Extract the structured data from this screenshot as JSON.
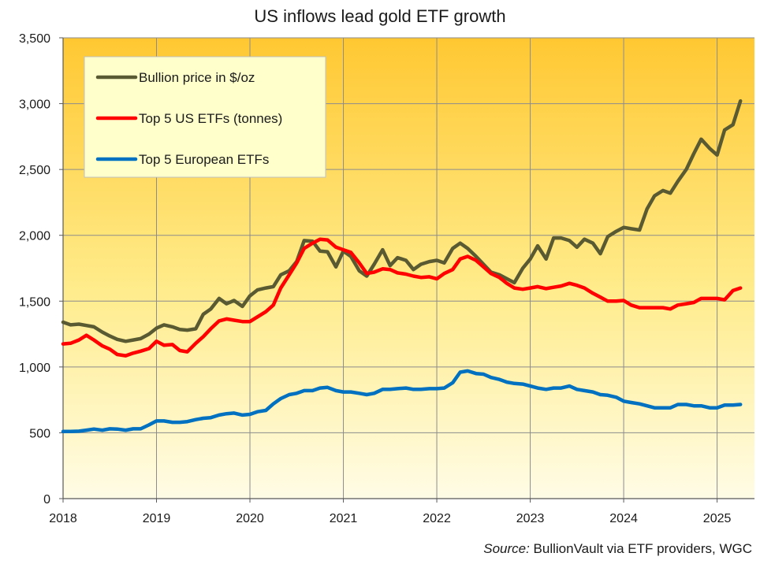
{
  "chart_data": {
    "type": "line",
    "title": "US inflows lead gold ETF growth",
    "source_label": "Source:",
    "source_text": " BullionVault via ETF providers,  WGC",
    "ylim": [
      0,
      3500
    ],
    "y_ticks": [
      "0",
      "500",
      "1,000",
      "1,500",
      "2,000",
      "2,500",
      "3,000",
      "3,500"
    ],
    "x_range": [
      2018,
      2025.4
    ],
    "x_ticks": [
      "2018",
      "2019",
      "2020",
      "2021",
      "2022",
      "2023",
      "2024",
      "2025"
    ],
    "grid": true,
    "legend_position": "top-left",
    "series": [
      {
        "name": "Bullion price in $/oz",
        "color": "#5a5a32",
        "points": [
          [
            2018.0,
            1340
          ],
          [
            2018.08,
            1320
          ],
          [
            2018.17,
            1325
          ],
          [
            2018.25,
            1315
          ],
          [
            2018.33,
            1305
          ],
          [
            2018.42,
            1265
          ],
          [
            2018.5,
            1235
          ],
          [
            2018.58,
            1210
          ],
          [
            2018.67,
            1195
          ],
          [
            2018.75,
            1205
          ],
          [
            2018.83,
            1215
          ],
          [
            2018.92,
            1250
          ],
          [
            2019.0,
            1295
          ],
          [
            2019.08,
            1320
          ],
          [
            2019.17,
            1305
          ],
          [
            2019.25,
            1285
          ],
          [
            2019.33,
            1280
          ],
          [
            2019.42,
            1290
          ],
          [
            2019.5,
            1400
          ],
          [
            2019.58,
            1440
          ],
          [
            2019.67,
            1520
          ],
          [
            2019.75,
            1480
          ],
          [
            2019.83,
            1505
          ],
          [
            2019.92,
            1460
          ],
          [
            2020.0,
            1540
          ],
          [
            2020.08,
            1585
          ],
          [
            2020.17,
            1600
          ],
          [
            2020.25,
            1610
          ],
          [
            2020.33,
            1700
          ],
          [
            2020.42,
            1730
          ],
          [
            2020.5,
            1800
          ],
          [
            2020.58,
            1960
          ],
          [
            2020.67,
            1955
          ],
          [
            2020.75,
            1880
          ],
          [
            2020.83,
            1875
          ],
          [
            2020.92,
            1760
          ],
          [
            2021.0,
            1880
          ],
          [
            2021.08,
            1840
          ],
          [
            2021.17,
            1730
          ],
          [
            2021.25,
            1690
          ],
          [
            2021.33,
            1780
          ],
          [
            2021.42,
            1890
          ],
          [
            2021.5,
            1770
          ],
          [
            2021.58,
            1830
          ],
          [
            2021.67,
            1810
          ],
          [
            2021.75,
            1740
          ],
          [
            2021.83,
            1780
          ],
          [
            2021.92,
            1800
          ],
          [
            2022.0,
            1810
          ],
          [
            2022.08,
            1790
          ],
          [
            2022.17,
            1900
          ],
          [
            2022.25,
            1940
          ],
          [
            2022.33,
            1900
          ],
          [
            2022.42,
            1840
          ],
          [
            2022.5,
            1780
          ],
          [
            2022.58,
            1720
          ],
          [
            2022.67,
            1700
          ],
          [
            2022.75,
            1670
          ],
          [
            2022.83,
            1640
          ],
          [
            2022.92,
            1750
          ],
          [
            2023.0,
            1820
          ],
          [
            2023.08,
            1920
          ],
          [
            2023.17,
            1820
          ],
          [
            2023.25,
            1980
          ],
          [
            2023.33,
            1980
          ],
          [
            2023.42,
            1960
          ],
          [
            2023.5,
            1910
          ],
          [
            2023.58,
            1970
          ],
          [
            2023.67,
            1940
          ],
          [
            2023.75,
            1860
          ],
          [
            2023.83,
            1990
          ],
          [
            2023.92,
            2030
          ],
          [
            2024.0,
            2060
          ],
          [
            2024.08,
            2050
          ],
          [
            2024.17,
            2040
          ],
          [
            2024.25,
            2200
          ],
          [
            2024.33,
            2300
          ],
          [
            2024.42,
            2340
          ],
          [
            2024.5,
            2320
          ],
          [
            2024.58,
            2410
          ],
          [
            2024.67,
            2500
          ],
          [
            2024.75,
            2620
          ],
          [
            2024.83,
            2730
          ],
          [
            2024.92,
            2660
          ],
          [
            2025.0,
            2610
          ],
          [
            2025.08,
            2800
          ],
          [
            2025.17,
            2840
          ],
          [
            2025.25,
            3020
          ]
        ]
      },
      {
        "name": "Top 5 US ETFs (tonnes)",
        "color": "#ff0000",
        "points": [
          [
            2018.0,
            1175
          ],
          [
            2018.08,
            1180
          ],
          [
            2018.17,
            1205
          ],
          [
            2018.25,
            1240
          ],
          [
            2018.33,
            1205
          ],
          [
            2018.42,
            1160
          ],
          [
            2018.5,
            1135
          ],
          [
            2018.58,
            1095
          ],
          [
            2018.67,
            1085
          ],
          [
            2018.75,
            1105
          ],
          [
            2018.83,
            1120
          ],
          [
            2018.92,
            1140
          ],
          [
            2019.0,
            1195
          ],
          [
            2019.08,
            1165
          ],
          [
            2019.17,
            1170
          ],
          [
            2019.25,
            1125
          ],
          [
            2019.33,
            1115
          ],
          [
            2019.42,
            1180
          ],
          [
            2019.5,
            1230
          ],
          [
            2019.58,
            1290
          ],
          [
            2019.67,
            1350
          ],
          [
            2019.75,
            1365
          ],
          [
            2019.83,
            1355
          ],
          [
            2019.92,
            1345
          ],
          [
            2020.0,
            1345
          ],
          [
            2020.08,
            1380
          ],
          [
            2020.17,
            1420
          ],
          [
            2020.25,
            1470
          ],
          [
            2020.33,
            1600
          ],
          [
            2020.42,
            1700
          ],
          [
            2020.5,
            1790
          ],
          [
            2020.58,
            1900
          ],
          [
            2020.67,
            1940
          ],
          [
            2020.75,
            1970
          ],
          [
            2020.83,
            1965
          ],
          [
            2020.92,
            1910
          ],
          [
            2021.0,
            1890
          ],
          [
            2021.08,
            1870
          ],
          [
            2021.17,
            1790
          ],
          [
            2021.25,
            1710
          ],
          [
            2021.33,
            1720
          ],
          [
            2021.42,
            1745
          ],
          [
            2021.5,
            1740
          ],
          [
            2021.58,
            1715
          ],
          [
            2021.67,
            1705
          ],
          [
            2021.75,
            1690
          ],
          [
            2021.83,
            1680
          ],
          [
            2021.92,
            1685
          ],
          [
            2022.0,
            1670
          ],
          [
            2022.08,
            1710
          ],
          [
            2022.17,
            1740
          ],
          [
            2022.25,
            1820
          ],
          [
            2022.33,
            1840
          ],
          [
            2022.42,
            1810
          ],
          [
            2022.5,
            1760
          ],
          [
            2022.58,
            1710
          ],
          [
            2022.67,
            1680
          ],
          [
            2022.75,
            1635
          ],
          [
            2022.83,
            1600
          ],
          [
            2022.92,
            1590
          ],
          [
            2023.0,
            1600
          ],
          [
            2023.08,
            1610
          ],
          [
            2023.17,
            1595
          ],
          [
            2023.25,
            1605
          ],
          [
            2023.33,
            1615
          ],
          [
            2023.42,
            1635
          ],
          [
            2023.5,
            1620
          ],
          [
            2023.58,
            1600
          ],
          [
            2023.67,
            1560
          ],
          [
            2023.75,
            1530
          ],
          [
            2023.83,
            1500
          ],
          [
            2023.92,
            1500
          ],
          [
            2024.0,
            1505
          ],
          [
            2024.08,
            1470
          ],
          [
            2024.17,
            1450
          ],
          [
            2024.25,
            1450
          ],
          [
            2024.33,
            1450
          ],
          [
            2024.42,
            1450
          ],
          [
            2024.5,
            1440
          ],
          [
            2024.58,
            1470
          ],
          [
            2024.67,
            1480
          ],
          [
            2024.75,
            1490
          ],
          [
            2024.83,
            1520
          ],
          [
            2024.92,
            1520
          ],
          [
            2025.0,
            1520
          ],
          [
            2025.08,
            1510
          ],
          [
            2025.17,
            1580
          ],
          [
            2025.25,
            1600
          ]
        ]
      },
      {
        "name": "Top 5 European ETFs",
        "color": "#0070c0",
        "points": [
          [
            2018.0,
            510
          ],
          [
            2018.08,
            510
          ],
          [
            2018.17,
            512
          ],
          [
            2018.25,
            520
          ],
          [
            2018.33,
            528
          ],
          [
            2018.42,
            520
          ],
          [
            2018.5,
            530
          ],
          [
            2018.58,
            528
          ],
          [
            2018.67,
            520
          ],
          [
            2018.75,
            530
          ],
          [
            2018.83,
            530
          ],
          [
            2018.92,
            560
          ],
          [
            2019.0,
            590
          ],
          [
            2019.08,
            590
          ],
          [
            2019.17,
            580
          ],
          [
            2019.25,
            580
          ],
          [
            2019.33,
            585
          ],
          [
            2019.42,
            600
          ],
          [
            2019.5,
            610
          ],
          [
            2019.58,
            615
          ],
          [
            2019.67,
            635
          ],
          [
            2019.75,
            645
          ],
          [
            2019.83,
            650
          ],
          [
            2019.92,
            635
          ],
          [
            2020.0,
            640
          ],
          [
            2020.08,
            660
          ],
          [
            2020.17,
            670
          ],
          [
            2020.25,
            720
          ],
          [
            2020.33,
            760
          ],
          [
            2020.42,
            790
          ],
          [
            2020.5,
            800
          ],
          [
            2020.58,
            820
          ],
          [
            2020.67,
            820
          ],
          [
            2020.75,
            840
          ],
          [
            2020.83,
            845
          ],
          [
            2020.92,
            820
          ],
          [
            2021.0,
            810
          ],
          [
            2021.08,
            810
          ],
          [
            2021.17,
            800
          ],
          [
            2021.25,
            790
          ],
          [
            2021.33,
            800
          ],
          [
            2021.42,
            830
          ],
          [
            2021.5,
            830
          ],
          [
            2021.58,
            835
          ],
          [
            2021.67,
            840
          ],
          [
            2021.75,
            830
          ],
          [
            2021.83,
            830
          ],
          [
            2021.92,
            835
          ],
          [
            2022.0,
            835
          ],
          [
            2022.08,
            840
          ],
          [
            2022.17,
            880
          ],
          [
            2022.25,
            960
          ],
          [
            2022.33,
            970
          ],
          [
            2022.42,
            950
          ],
          [
            2022.5,
            945
          ],
          [
            2022.58,
            920
          ],
          [
            2022.67,
            905
          ],
          [
            2022.75,
            885
          ],
          [
            2022.83,
            875
          ],
          [
            2022.92,
            870
          ],
          [
            2023.0,
            855
          ],
          [
            2023.08,
            840
          ],
          [
            2023.17,
            830
          ],
          [
            2023.25,
            840
          ],
          [
            2023.33,
            840
          ],
          [
            2023.42,
            855
          ],
          [
            2023.5,
            830
          ],
          [
            2023.58,
            820
          ],
          [
            2023.67,
            810
          ],
          [
            2023.75,
            790
          ],
          [
            2023.83,
            785
          ],
          [
            2023.92,
            770
          ],
          [
            2024.0,
            740
          ],
          [
            2024.08,
            730
          ],
          [
            2024.17,
            720
          ],
          [
            2024.25,
            705
          ],
          [
            2024.33,
            690
          ],
          [
            2024.42,
            690
          ],
          [
            2024.5,
            690
          ],
          [
            2024.58,
            715
          ],
          [
            2024.67,
            715
          ],
          [
            2024.75,
            705
          ],
          [
            2024.83,
            705
          ],
          [
            2024.92,
            690
          ],
          [
            2025.0,
            690
          ],
          [
            2025.08,
            710
          ],
          [
            2025.17,
            710
          ],
          [
            2025.25,
            715
          ]
        ]
      }
    ]
  }
}
